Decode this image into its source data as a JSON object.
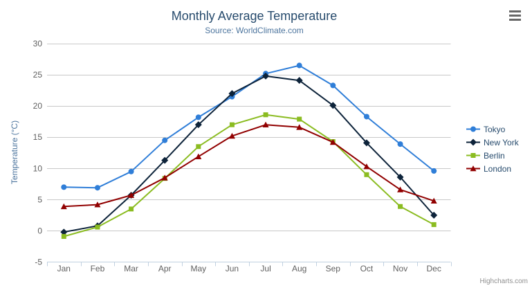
{
  "chart_data": {
    "type": "line",
    "title": "Monthly Average Temperature",
    "subtitle": "Source: WorldClimate.com",
    "categories": [
      "Jan",
      "Feb",
      "Mar",
      "Apr",
      "May",
      "Jun",
      "Jul",
      "Aug",
      "Sep",
      "Oct",
      "Nov",
      "Dec"
    ],
    "ylabel": "Temperature (°C)",
    "ylim": [
      -5,
      30
    ],
    "yticks": [
      30,
      25,
      20,
      15,
      10,
      5,
      0,
      -5
    ],
    "grid": true,
    "legend_position": "right",
    "series": [
      {
        "name": "Tokyo",
        "color": "#2f7ed8",
        "marker": "circle",
        "values": [
          7.0,
          6.9,
          9.5,
          14.5,
          18.2,
          21.5,
          25.2,
          26.5,
          23.3,
          18.3,
          13.9,
          9.6
        ]
      },
      {
        "name": "New York",
        "color": "#0d233a",
        "marker": "diamond",
        "values": [
          -0.2,
          0.8,
          5.7,
          11.3,
          17.0,
          22.0,
          24.8,
          24.1,
          20.1,
          14.1,
          8.6,
          2.5
        ]
      },
      {
        "name": "Berlin",
        "color": "#8bbc21",
        "marker": "square",
        "values": [
          -0.9,
          0.6,
          3.5,
          8.4,
          13.5,
          17.0,
          18.6,
          17.9,
          14.3,
          9.0,
          3.9,
          1.0
        ]
      },
      {
        "name": "London",
        "color": "#910000",
        "marker": "triangle",
        "values": [
          3.9,
          4.2,
          5.7,
          8.5,
          11.9,
          15.2,
          17.0,
          16.6,
          14.2,
          10.3,
          6.6,
          4.8
        ]
      }
    ],
    "credits": "Highcharts.com"
  },
  "icons": {
    "export_menu": "hamburger-icon"
  },
  "style_colors": {
    "title": "#274b6d",
    "subtitle": "#4d759e",
    "axis_label": "#606060",
    "gridline": "#c8c8c8",
    "axis_line": "#c0d0e0",
    "legend_text": "#274b6d",
    "credits_text": "#909090"
  }
}
